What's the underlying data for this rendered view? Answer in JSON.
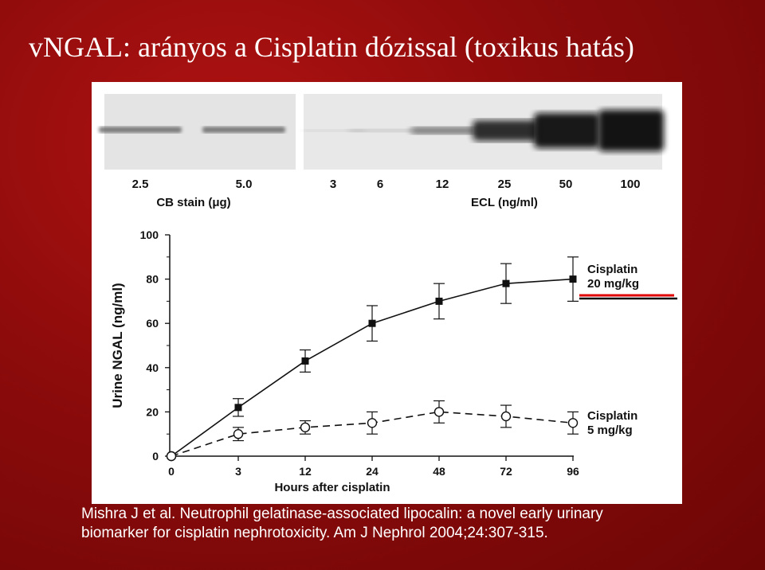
{
  "slide": {
    "title": "vNGAL: arányos a Cisplatin dózissal (toxikus hatás)"
  },
  "blot": {
    "cb_lanes": [
      "2.5",
      "5.0"
    ],
    "cb_label": "CB stain (μg)",
    "ecl_lanes": [
      "3",
      "6",
      "12",
      "25",
      "50",
      "100"
    ],
    "ecl_label": "ECL (ng/ml)"
  },
  "citation": {
    "line1": "Mishra J et al. Neutrophil gelatinase-associated lipocalin: a novel early urinary",
    "line2": "biomarker for cisplatin nephrotoxicity. Am J Nephrol 2004;24:307-315."
  },
  "colors": {
    "background": "#8c0b0b",
    "highlight_underline": "#e00000"
  },
  "chart_data": {
    "type": "line",
    "xlabel": "Hours after cisplatin",
    "ylabel": "Urine NGAL (ng/ml)",
    "categories": [
      "0",
      "3",
      "12",
      "24",
      "48",
      "72",
      "96"
    ],
    "ylim": [
      0,
      100
    ],
    "yticks": [
      0,
      20,
      40,
      60,
      80,
      100
    ],
    "grid": false,
    "legend": "right, labels at line ends",
    "series": [
      {
        "name": "Cisplatin 20 mg/kg",
        "label_lines": [
          "Cisplatin",
          "20 mg/kg"
        ],
        "marker": "filled-square",
        "line_style": "solid",
        "values": [
          0,
          22,
          43,
          60,
          70,
          78,
          80
        ],
        "errors": [
          0,
          4,
          5,
          8,
          8,
          9,
          10
        ],
        "highlighted": true
      },
      {
        "name": "Cisplatin 5 mg/kg",
        "label_lines": [
          "Cisplatin",
          "5 mg/kg"
        ],
        "marker": "open-circle",
        "line_style": "dashed",
        "values": [
          0,
          10,
          13,
          15,
          20,
          18,
          15
        ],
        "errors": [
          0,
          3,
          3,
          5,
          5,
          5,
          5
        ],
        "highlighted": false
      }
    ]
  }
}
